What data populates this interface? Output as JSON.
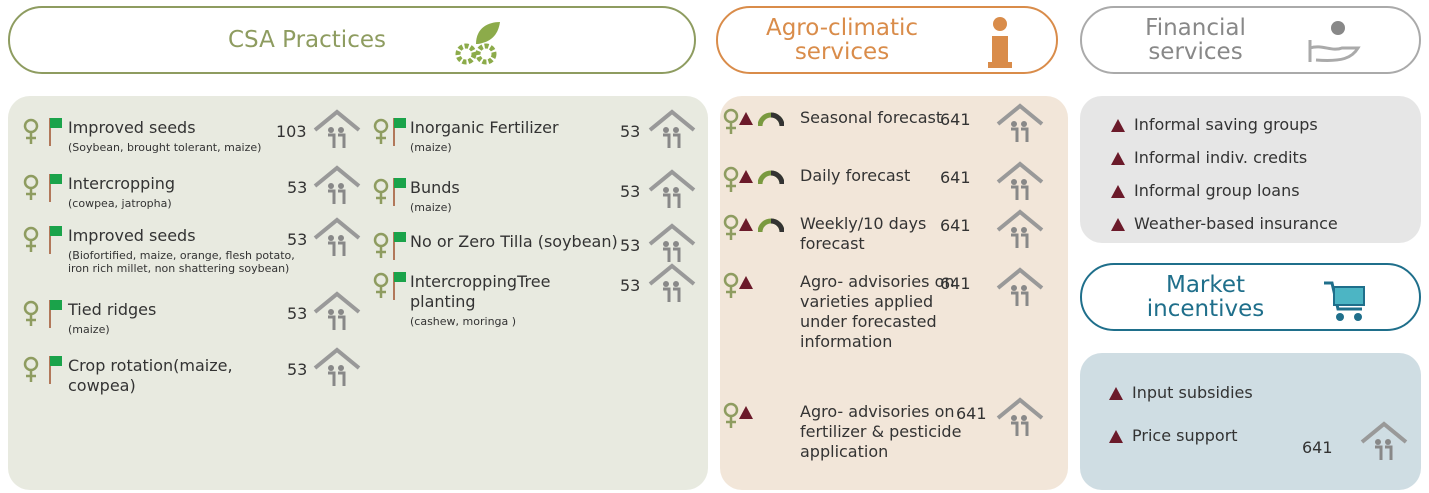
{
  "csa": {
    "title": "CSA Practices",
    "items": [
      {
        "name": "Improved seeds",
        "detail": "(Soybean, brought tolerant, maize)",
        "count": 103
      },
      {
        "name": "Intercropping",
        "detail": "(cowpea, jatropha)",
        "count": 53
      },
      {
        "name": "Improved seeds",
        "detail": "(Biofortified, maize,  orange, flesh potato, iron rich millet, non shattering soybean)",
        "count": 53
      },
      {
        "name": "Tied ridges",
        "detail": "(maize)",
        "count": 53
      },
      {
        "name": "Crop rotation(maize, cowpea)",
        "count": 53
      },
      {
        "name": "Inorganic Fertilizer",
        "detail": "(maize)",
        "count": 53
      },
      {
        "name": "Bunds",
        "detail": "(maize)",
        "count": 53
      },
      {
        "name": "No or Zero Tilla (soybean)",
        "count": 53
      },
      {
        "name": "IntercroppingTree planting",
        "detail": "(cashew, moringa )",
        "count": 53
      }
    ]
  },
  "agro": {
    "title": "Agro-climatic services",
    "items": [
      {
        "name": "Seasonal forecast",
        "count": 641
      },
      {
        "name": "Daily forecast",
        "count": 641
      },
      {
        "name": "Weekly/10 days forecast",
        "count": 641
      },
      {
        "name": "Agro- advisories on varieties applied under forecasted information",
        "count": 641
      },
      {
        "name": "Agro- advisories on fertilizer & pesticide application",
        "count": 641
      }
    ]
  },
  "financial": {
    "title": "Financial services",
    "items": [
      "Informal saving groups",
      "Informal indiv. credits",
      "Informal group loans",
      "Weather-based insurance"
    ]
  },
  "market": {
    "title": "Market incentives",
    "items": [
      {
        "name": "Input subsidies"
      },
      {
        "name": "Price support",
        "count": 641
      }
    ]
  }
}
